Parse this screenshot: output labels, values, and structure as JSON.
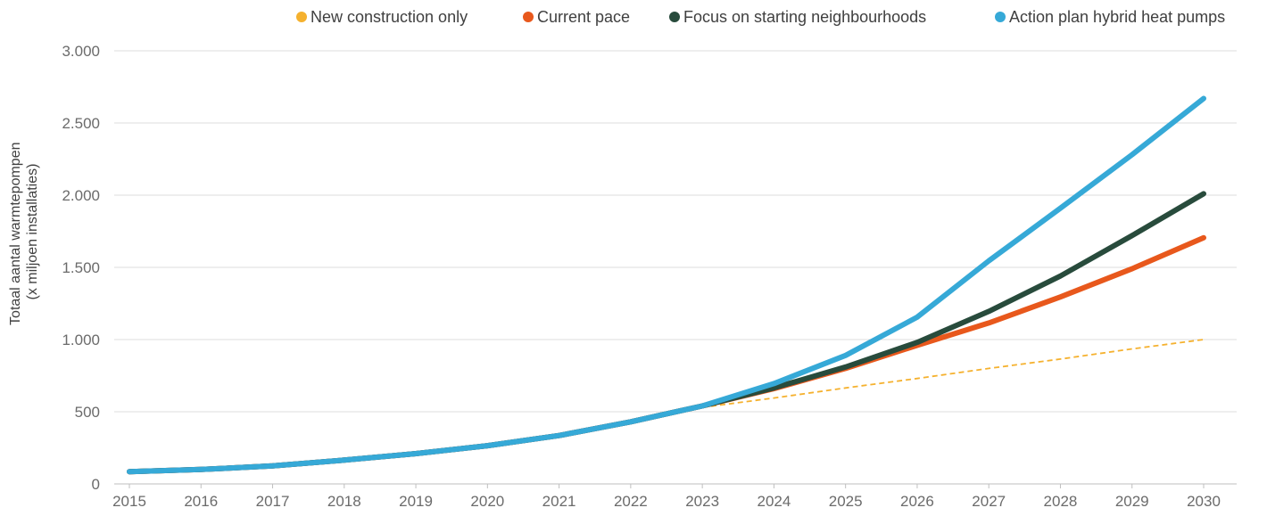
{
  "chart_data": {
    "type": "line",
    "ylabel_lines": [
      "Totaal aantal warmtepompen",
      "(x miljoen installaties)"
    ],
    "x": [
      2015,
      2016,
      2017,
      2018,
      2019,
      2020,
      2021,
      2022,
      2023,
      2024,
      2025,
      2026,
      2027,
      2028,
      2029,
      2030
    ],
    "x_tick_labels": [
      "2015",
      "2016",
      "2017",
      "2018",
      "2019",
      "2020",
      "2021",
      "2022",
      "2023",
      "2024",
      "2025",
      "2026",
      "2027",
      "2028",
      "2029",
      "2030"
    ],
    "ylim": [
      0,
      3000
    ],
    "y_ticks": [
      0,
      500,
      1000,
      1500,
      2000,
      2500,
      3000
    ],
    "y_tick_labels": [
      "0",
      "500",
      "1.000",
      "1.500",
      "2.000",
      "2.500",
      "3.000"
    ],
    "grid": true,
    "legend_position": "top",
    "series": [
      {
        "name": "New construction only",
        "color": "#f5b12e",
        "style": "dashed",
        "x": [
          2023,
          2024,
          2025,
          2026,
          2027,
          2028,
          2029,
          2030
        ],
        "values": [
          530,
          595,
          665,
          730,
          800,
          865,
          935,
          1000
        ]
      },
      {
        "name": "Current pace",
        "color": "#e8581c",
        "style": "solid",
        "x": [
          2015,
          2016,
          2017,
          2018,
          2019,
          2020,
          2021,
          2022,
          2023,
          2024,
          2025,
          2026,
          2027,
          2028,
          2029,
          2030
        ],
        "values": [
          85,
          100,
          125,
          165,
          210,
          265,
          335,
          430,
          540,
          660,
          800,
          960,
          1115,
          1295,
          1490,
          1705
        ]
      },
      {
        "name": "Focus on starting neighbourhoods",
        "color": "#284b3c",
        "style": "solid",
        "x": [
          2015,
          2016,
          2017,
          2018,
          2019,
          2020,
          2021,
          2022,
          2023,
          2024,
          2025,
          2026,
          2027,
          2028,
          2029,
          2030
        ],
        "values": [
          85,
          100,
          125,
          165,
          210,
          265,
          335,
          430,
          540,
          665,
          810,
          980,
          1195,
          1440,
          1720,
          2010
        ]
      },
      {
        "name": "Action plan hybrid heat pumps",
        "color": "#36a9d7",
        "style": "solid",
        "x": [
          2015,
          2016,
          2017,
          2018,
          2019,
          2020,
          2021,
          2022,
          2023,
          2024,
          2025,
          2026,
          2027,
          2028,
          2029,
          2030
        ],
        "values": [
          85,
          100,
          125,
          165,
          210,
          265,
          335,
          430,
          540,
          695,
          890,
          1155,
          1545,
          1910,
          2280,
          2670
        ]
      }
    ]
  }
}
